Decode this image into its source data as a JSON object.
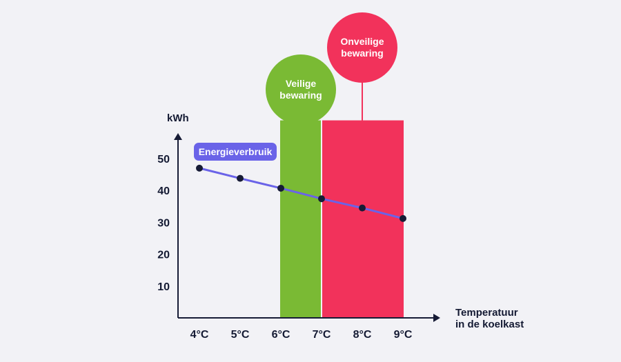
{
  "chart_data": {
    "type": "line",
    "x": [
      "4°C",
      "5°C",
      "6°C",
      "7°C",
      "8°C",
      "9°C"
    ],
    "series": [
      {
        "name": "Energieverbruik",
        "values": [
          47,
          43.8,
          40.7,
          37.4,
          34.5,
          31.2
        ]
      }
    ],
    "yticks": [
      10,
      20,
      30,
      40,
      50
    ],
    "ylabel": "kWh",
    "xlabel": [
      "Temperatuur",
      "in de koelkast"
    ],
    "ylim": [
      0,
      62
    ],
    "zones": [
      {
        "label": [
          "Veilige",
          "bewaring"
        ],
        "from": "6°C",
        "to": "7°C",
        "color": "#7aba34"
      },
      {
        "label": [
          "Onveilige",
          "bewaring"
        ],
        "from": "7°C",
        "to": "9°C",
        "color": "#f2325b"
      }
    ],
    "line_color": "#6a63e8",
    "point_color": "#161b35",
    "axis_color": "#161b35"
  }
}
